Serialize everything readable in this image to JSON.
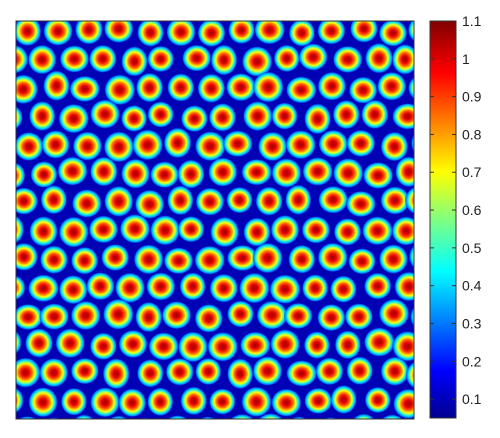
{
  "chart_data": {
    "type": "heatmap",
    "title": "",
    "xlabel": "",
    "ylabel": "",
    "colormap": "jet",
    "value_range": [
      0.05,
      1.1
    ],
    "colorbar": {
      "ticks": [
        0.1,
        0.2,
        0.3,
        0.4,
        0.5,
        0.6,
        0.7,
        0.8,
        0.9,
        1,
        1.1
      ],
      "labels": [
        "0.1",
        "0.2",
        "0.3",
        "0.4",
        "0.5",
        "0.6",
        "0.7",
        "0.8",
        "0.9",
        "1",
        "1.1"
      ],
      "placement": "right"
    },
    "pattern": "hexagonal array of spots, peak about 1.1, background about 0.05",
    "grid": false
  },
  "colors": {
    "background": "#ffffff",
    "spot_peak": "#a50000",
    "field_low": "#0000a0"
  }
}
